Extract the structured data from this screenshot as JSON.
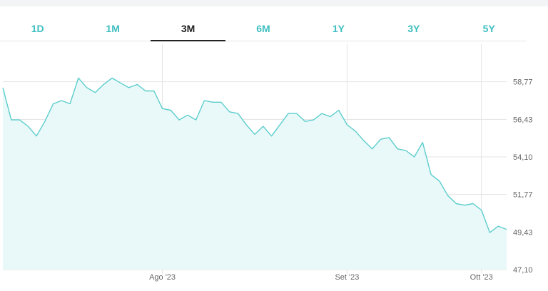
{
  "tabs": [
    {
      "label": "1D",
      "active": false
    },
    {
      "label": "1M",
      "active": false
    },
    {
      "label": "3M",
      "active": true
    },
    {
      "label": "6M",
      "active": false
    },
    {
      "label": "1Y",
      "active": false
    },
    {
      "label": "3Y",
      "active": false
    },
    {
      "label": "5Y",
      "active": false
    }
  ],
  "colors": {
    "accent": "#3fbfc1",
    "line": "#5ccdcd",
    "fill": "#e9f8f8",
    "grid": "#e3e3e3",
    "active_tab": "#222222"
  },
  "chart_data": {
    "type": "area",
    "title": "",
    "xlabel": "",
    "ylabel": "",
    "grid": true,
    "ylim": [
      47.1,
      61.1
    ],
    "y_ticks": [
      "47,10",
      "49,43",
      "51,77",
      "54,10",
      "56,43",
      "58,77"
    ],
    "y_tick_values": [
      47.1,
      49.43,
      51.77,
      54.1,
      56.43,
      58.77
    ],
    "x_ticks": [
      {
        "label": "Ago '23",
        "index": 19
      },
      {
        "label": "Set '23",
        "index": 41
      },
      {
        "label": "Ott '23",
        "index": 57
      }
    ],
    "series": [
      {
        "values": [
          58.4,
          56.4,
          56.4,
          56.0,
          55.4,
          56.3,
          57.4,
          57.6,
          57.4,
          59.0,
          58.4,
          58.1,
          58.6,
          59.0,
          58.7,
          58.4,
          58.6,
          58.2,
          58.2,
          57.1,
          57.0,
          56.4,
          56.7,
          56.4,
          57.6,
          57.5,
          57.5,
          56.9,
          56.8,
          56.1,
          55.5,
          56.0,
          55.4,
          56.1,
          56.8,
          56.8,
          56.3,
          56.4,
          56.8,
          56.6,
          57.0,
          56.1,
          55.7,
          55.1,
          54.6,
          55.2,
          55.3,
          54.6,
          54.5,
          54.1,
          55.0,
          53.0,
          52.6,
          51.7,
          51.2,
          51.1,
          51.2,
          50.8,
          49.4,
          49.8,
          49.6
        ]
      }
    ]
  }
}
